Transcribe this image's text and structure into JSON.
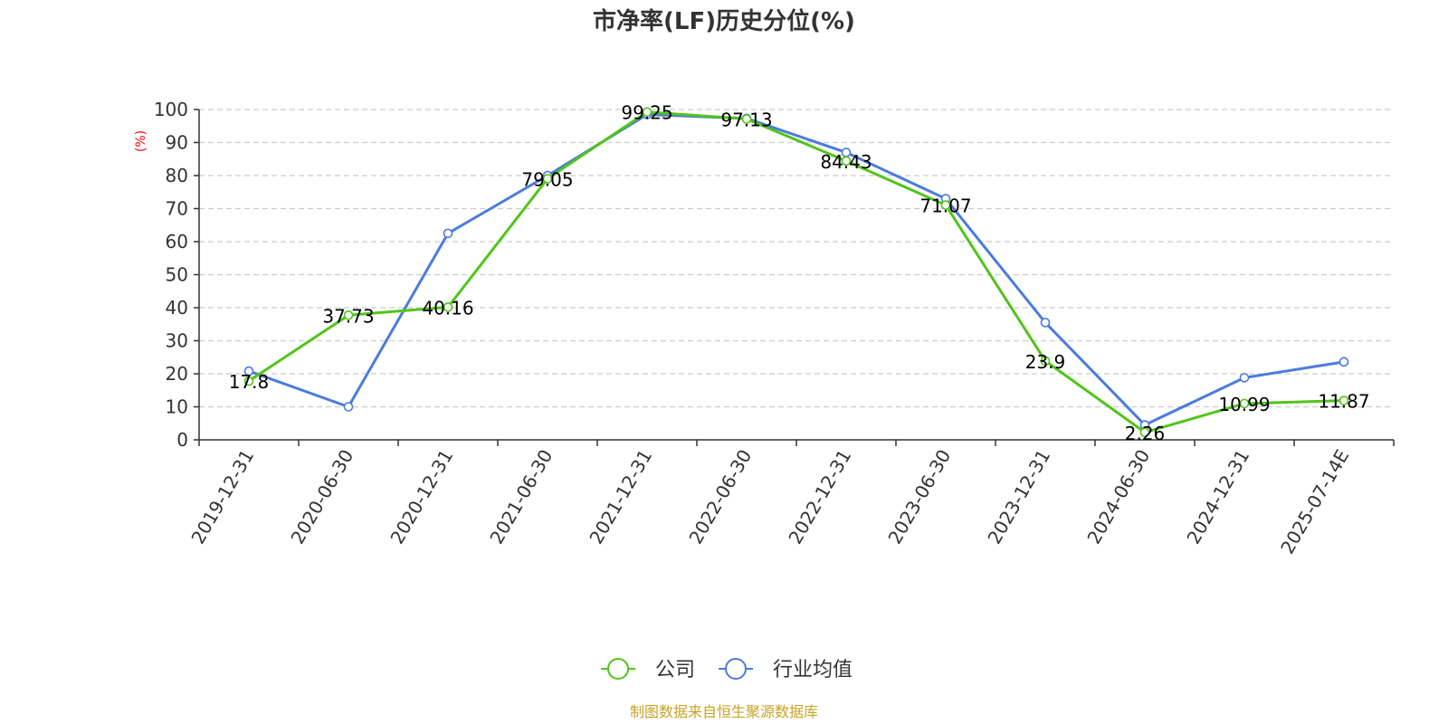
{
  "colors": {
    "company": "#52c41a",
    "industry": "#4b7bdc",
    "grid": "#cccccc",
    "axis": "#333333",
    "unit": "#ff0000",
    "source": "#c9a227"
  },
  "chart_data": {
    "type": "line",
    "title": "市净率(LF)历史分位(%)",
    "ylabel": "(%)",
    "xlabel": "",
    "ylim": [
      0,
      100
    ],
    "y_ticks": [
      0,
      10,
      20,
      30,
      40,
      50,
      60,
      70,
      80,
      90,
      100
    ],
    "categories": [
      "2019-12-31",
      "2020-06-30",
      "2020-12-31",
      "2021-06-30",
      "2021-12-31",
      "2022-06-30",
      "2022-12-31",
      "2023-06-30",
      "2023-12-31",
      "2024-06-30",
      "2024-12-31",
      "2025-07-14E"
    ],
    "series": [
      {
        "name": "公司",
        "color_key": "company",
        "values": [
          17.8,
          37.73,
          40.16,
          79.05,
          99.25,
          97.13,
          84.43,
          71.07,
          23.9,
          2.26,
          10.99,
          11.87
        ],
        "labels": [
          "17.8",
          "37.73",
          "40.16",
          "79.05",
          "99.25",
          "97.13",
          "84.43",
          "71.07",
          "23.9",
          "2.26",
          "10.99",
          "11.87"
        ]
      },
      {
        "name": "行业均值",
        "color_key": "industry",
        "values": [
          20.8,
          10,
          62.5,
          80,
          98.5,
          97.3,
          87,
          73,
          35.5,
          4.5,
          18.8,
          23.6
        ]
      }
    ],
    "grid": true,
    "legend_position": "bottom-center"
  },
  "footer": {
    "source": "制图数据来自恒生聚源数据库"
  }
}
